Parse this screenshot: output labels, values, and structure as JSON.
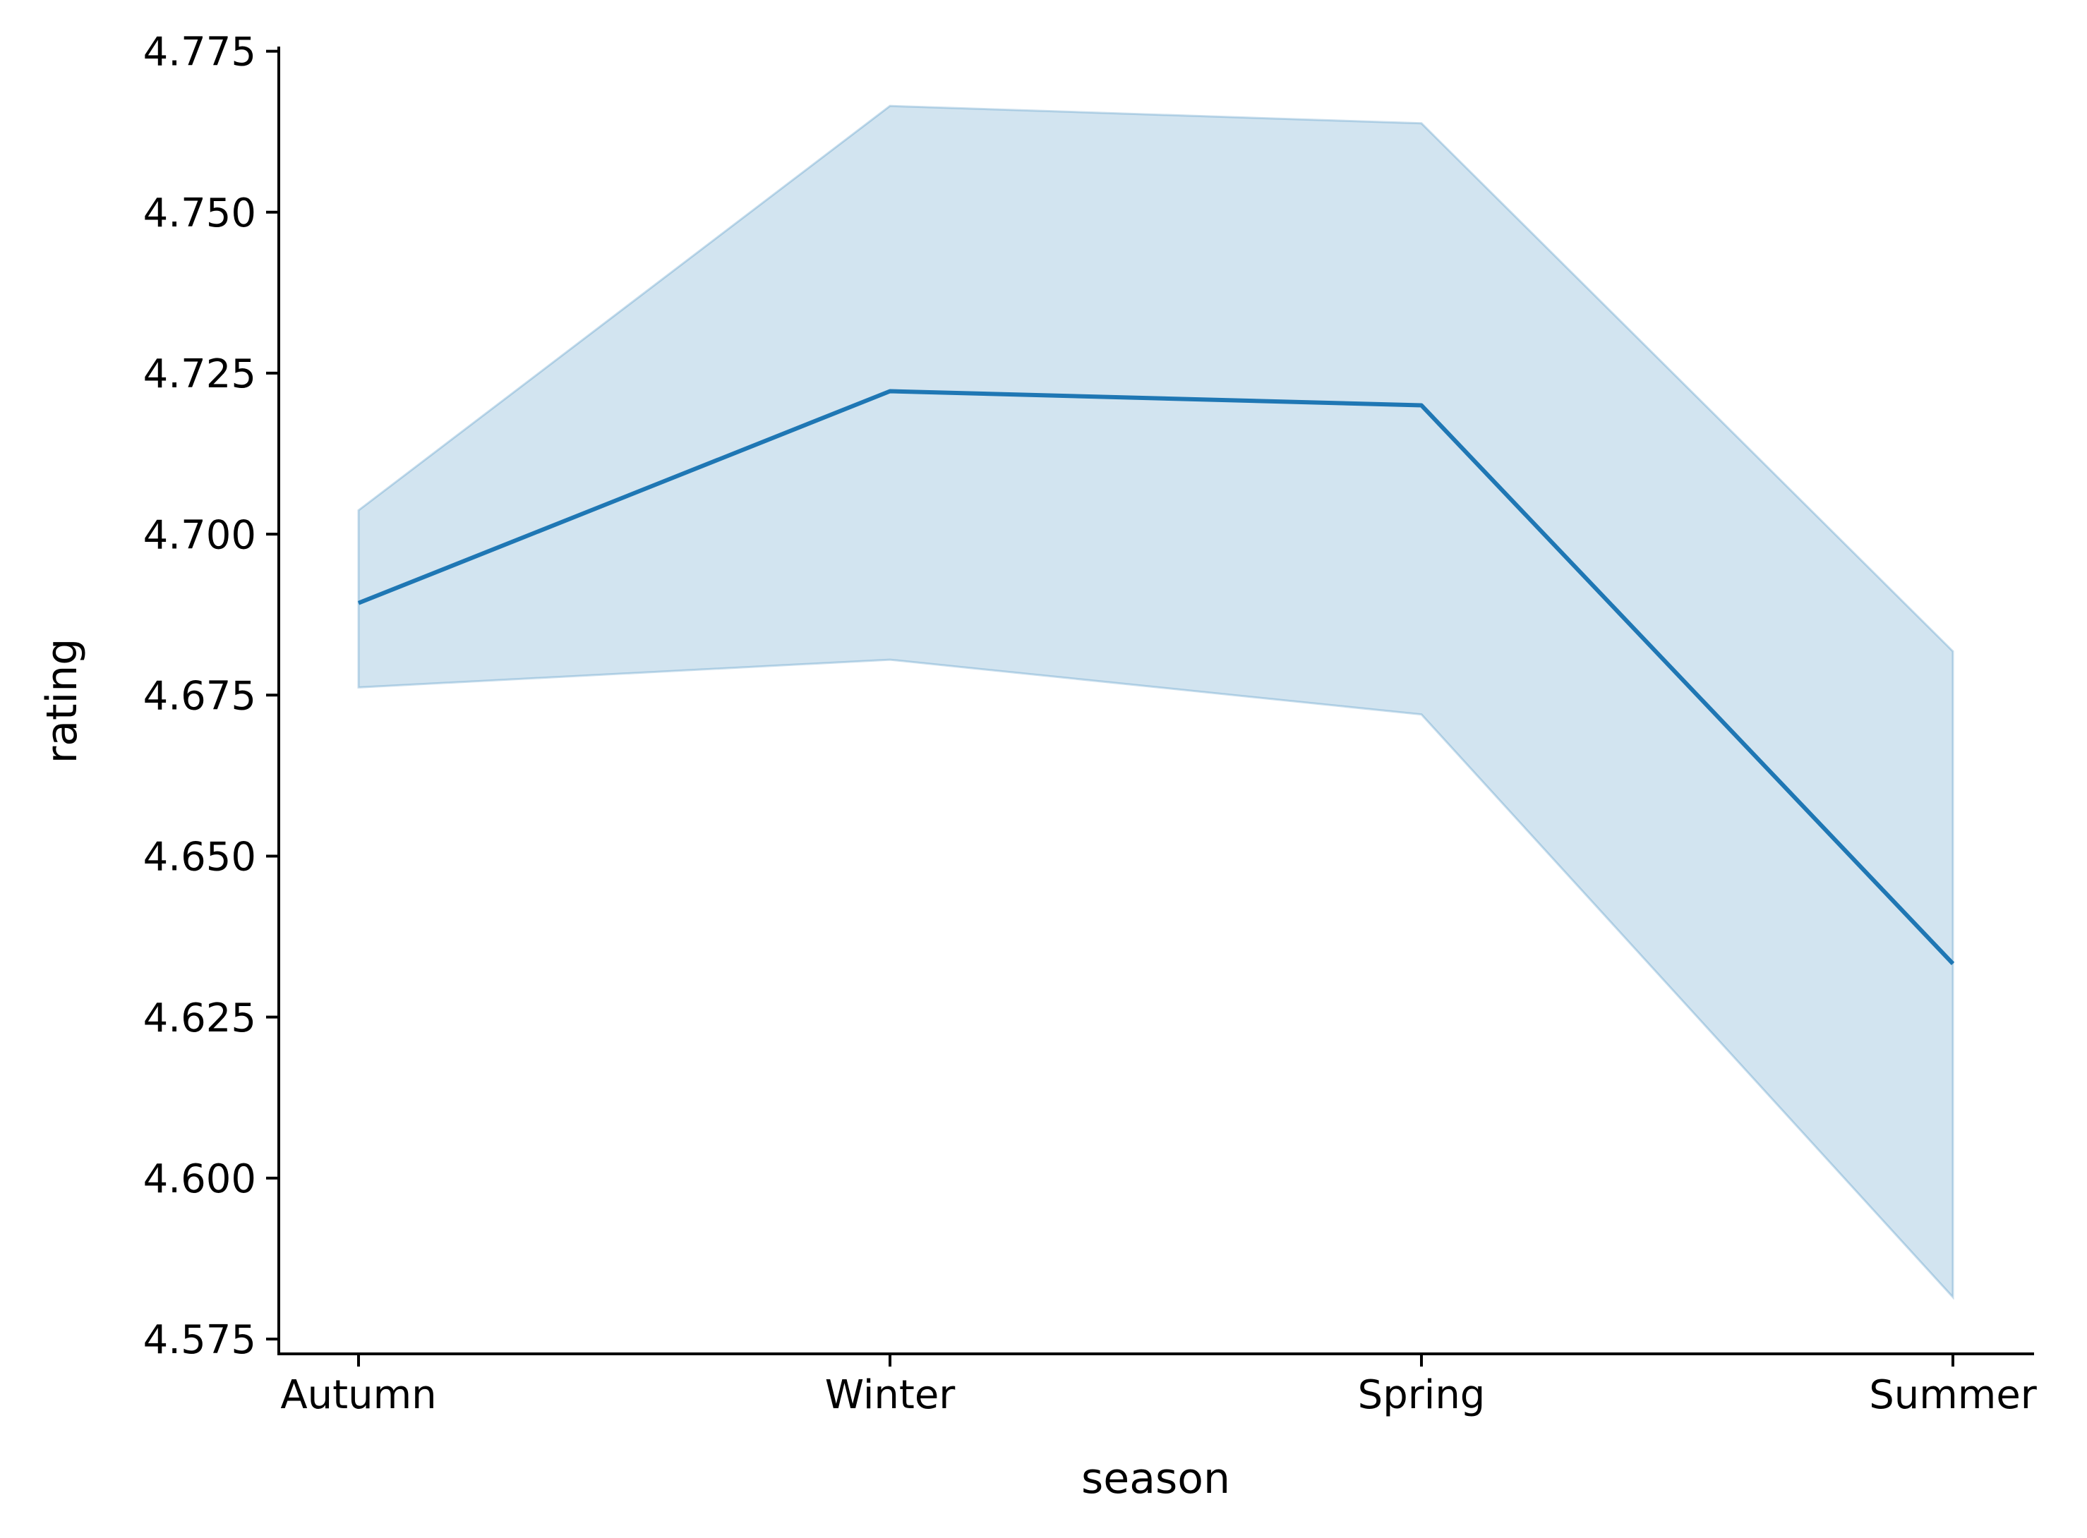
{
  "chart_data": {
    "type": "line",
    "title": "",
    "xlabel": "season",
    "ylabel": "rating",
    "categories": [
      "Autumn",
      "Winter",
      "Spring",
      "Summer"
    ],
    "series": [
      {
        "values": [
          4.6893,
          4.7222,
          4.72,
          4.6333
        ],
        "ci_low": [
          4.6762,
          4.6805,
          4.672,
          4.5815
        ],
        "ci_high": [
          4.7037,
          4.7665,
          4.7638,
          4.6818
        ],
        "color": "#1f77b4",
        "band_color": "#1f77b4",
        "band_opacity": 0.2
      }
    ],
    "ylim": [
      4.5727,
      4.7755
    ],
    "yticks": [
      4.575,
      4.6,
      4.625,
      4.65,
      4.675,
      4.7,
      4.725,
      4.75,
      4.775
    ],
    "ytick_labels": [
      "4.575",
      "4.600",
      "4.625",
      "4.650",
      "4.675",
      "4.700",
      "4.725",
      "4.750",
      "4.775"
    ],
    "grid": false,
    "legend": "none",
    "spines": "left-bottom"
  }
}
